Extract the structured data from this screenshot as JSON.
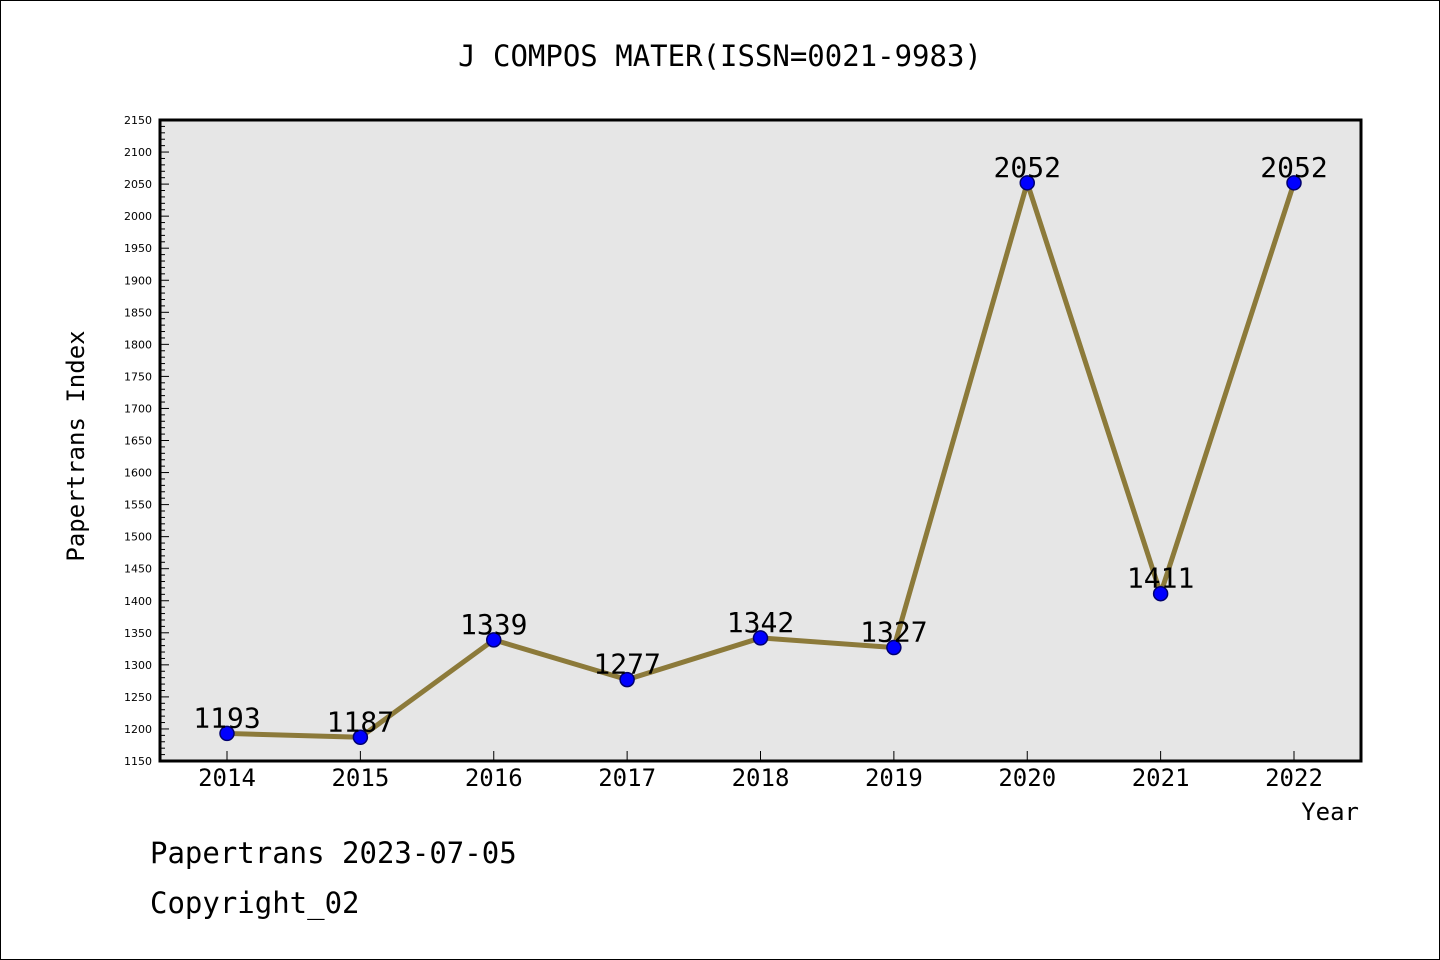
{
  "chart_data": {
    "type": "line",
    "title": "J COMPOS MATER(ISSN=0021-9983)",
    "xlabel": "Year",
    "ylabel": "Papertrans Index",
    "categories": [
      "2014",
      "2015",
      "2016",
      "2017",
      "2018",
      "2019",
      "2020",
      "2021",
      "2022"
    ],
    "values": [
      1193,
      1187,
      1339,
      1277,
      1342,
      1327,
      2052,
      1411,
      2052
    ],
    "data_labels": [
      "1193",
      "1187",
      "1339",
      "1277",
      "1342",
      "1327",
      "2052",
      "1411",
      "2052"
    ],
    "ylim": [
      1150,
      2150
    ],
    "yticks": [
      1150,
      1200,
      1250,
      1300,
      1350,
      1400,
      1450,
      1500,
      1550,
      1600,
      1650,
      1700,
      1750,
      1800,
      1850,
      1900,
      1950,
      2000,
      2050,
      2100,
      2150
    ],
    "grid": false,
    "colors": {
      "line": "#8c7a3a",
      "marker": "#0000ff",
      "plot_bg": "#e6e6e6"
    }
  },
  "footer": {
    "line1": "Papertrans 2023-07-05",
    "line2": "Copyright_02"
  }
}
